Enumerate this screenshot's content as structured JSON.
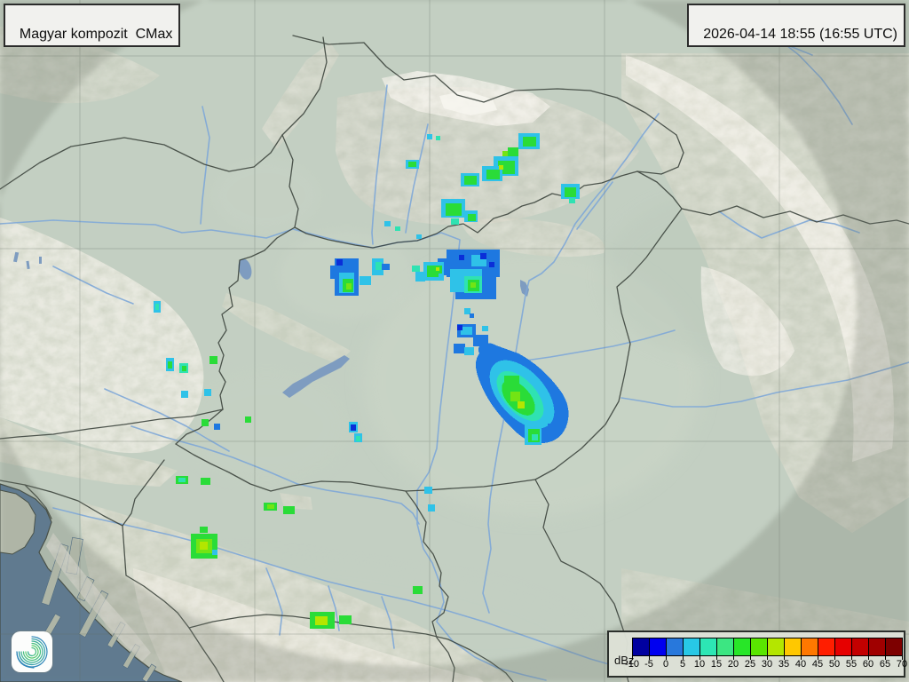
{
  "header": {
    "product_label": "Magyar kompozit  CMax",
    "timestamp": "2026-04-14 18:55 (16:55 UTC)"
  },
  "legend": {
    "unit_label": "dBz",
    "tick_labels": [
      "-10",
      "-5",
      "0",
      "5",
      "10",
      "15",
      "20",
      "25",
      "30",
      "35",
      "40",
      "45",
      "50",
      "55",
      "60",
      "65",
      "70"
    ],
    "cell_colors": [
      "#0000a0",
      "#0000f0",
      "#2878dc",
      "#28c8e6",
      "#2de6b4",
      "#3ce682",
      "#28e628",
      "#5ae600",
      "#b4e600",
      "#ffc800",
      "#ff7800",
      "#ff1e00",
      "#e60000",
      "#c30000",
      "#a00000",
      "#7d0000"
    ]
  },
  "map": {
    "echo_colors": [
      "#0a2ed8",
      "#1e78e0",
      "#2fc2e8",
      "#2fe2b2",
      "#2adc38",
      "#73e414",
      "#b4e600"
    ]
  },
  "logo": {
    "name": "hungaromet-spiral-logo"
  }
}
